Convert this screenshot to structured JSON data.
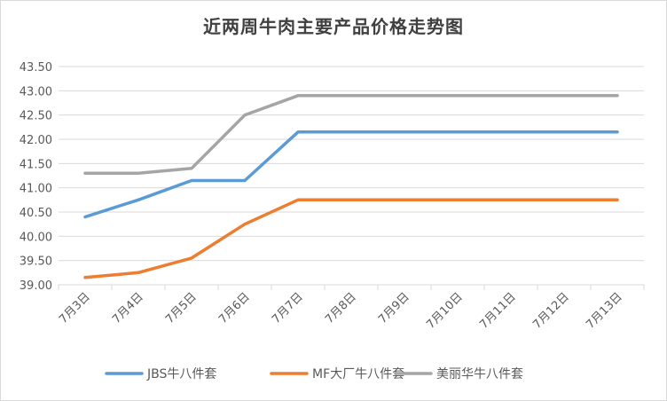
{
  "chart_data": {
    "type": "line",
    "title": "近两周牛肉主要产品价格走势图",
    "xlabel": "",
    "ylabel": "",
    "categories": [
      "7月3日",
      "7月4日",
      "7月5日",
      "7月6日",
      "7月7日",
      "7月8日",
      "7月9日",
      "7月10日",
      "7月11日",
      "7月12日",
      "7月13日"
    ],
    "ylim": [
      39.0,
      43.5
    ],
    "yticks": [
      "39.00",
      "39.50",
      "40.00",
      "40.50",
      "41.00",
      "41.50",
      "42.00",
      "42.50",
      "43.00",
      "43.50"
    ],
    "grid": true,
    "legend_position": "bottom",
    "series": [
      {
        "name": "JBS牛八件套",
        "color": "#5b9bd5",
        "values": [
          40.4,
          40.75,
          41.15,
          41.15,
          42.15,
          42.15,
          42.15,
          42.15,
          42.15,
          42.15,
          42.15
        ]
      },
      {
        "name": "MF大厂牛八件套",
        "color": "#ed7d31",
        "values": [
          39.15,
          39.25,
          39.55,
          40.25,
          40.75,
          40.75,
          40.75,
          40.75,
          40.75,
          40.75,
          40.75
        ]
      },
      {
        "name": "美丽华牛八件套",
        "color": "#a5a5a5",
        "values": [
          41.3,
          41.3,
          41.4,
          42.5,
          42.9,
          42.9,
          42.9,
          42.9,
          42.9,
          42.9,
          42.9
        ]
      }
    ]
  }
}
